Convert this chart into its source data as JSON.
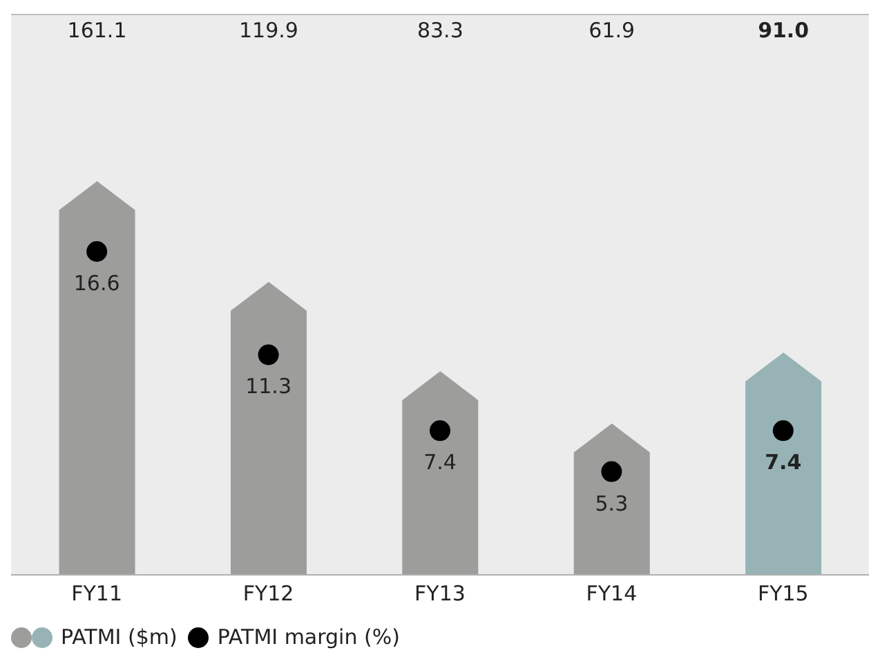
{
  "chart_data": {
    "type": "bar",
    "categories": [
      "FY11",
      "FY12",
      "FY13",
      "FY14",
      "FY15"
    ],
    "series": [
      {
        "name": "PATMI ($m)",
        "colors": [
          "#9d9d9c",
          "#9d9d9c",
          "#9d9d9c",
          "#9d9d9c",
          "#97b3b5"
        ],
        "values": [
          161.1,
          119.9,
          83.3,
          61.9,
          91.0
        ],
        "value_labels": [
          "161.1",
          "119.9",
          "83.3",
          "61.9",
          "91.0"
        ]
      },
      {
        "name": "PATMI margin (%)",
        "type": "scatter",
        "axis": "y2",
        "color": "#000000",
        "marker": "circle",
        "values": [
          16.6,
          11.3,
          7.4,
          5.3,
          7.4
        ],
        "value_labels": [
          "16.6",
          "11.3",
          "7.4",
          "5.3",
          "7.4"
        ]
      }
    ],
    "legend": "bottom left",
    "tick_labels": "x",
    "grid": false
  }
}
